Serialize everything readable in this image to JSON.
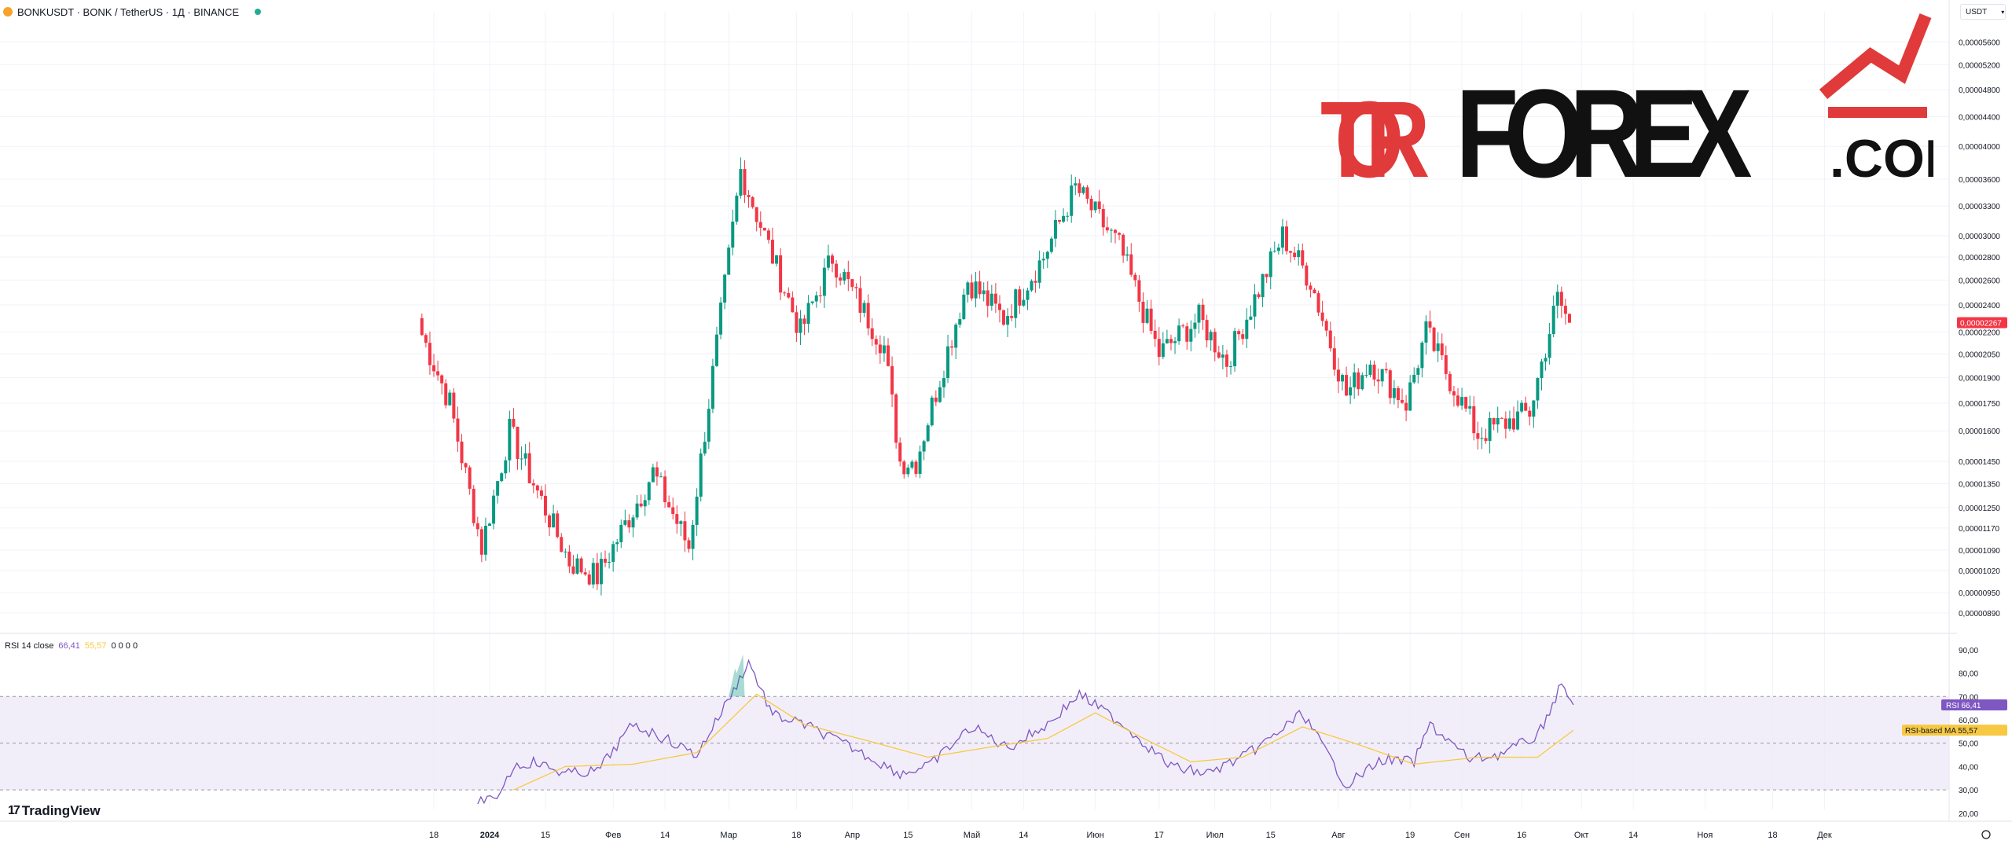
{
  "header": {
    "symbol_line": "BONKUSDT · BONK / TetherUS · 1Д · BINANCE"
  },
  "currency_button": {
    "label": "USDT",
    "chevron_icon": "chevron-down-icon"
  },
  "watermark": {
    "part1": "TOR",
    "part2": "FOREX",
    "part3": ".COM",
    "accent": "#e03a3a"
  },
  "rsi_header": {
    "label": "RSI 14 close",
    "rsi_value": "66,41",
    "ma_value": "55,57",
    "zeros": "0 0 0 0"
  },
  "branding": {
    "logo_text": "TradingView",
    "logo_mark": "17"
  },
  "colors": {
    "up": "#089981",
    "down": "#f23645",
    "rsi": "#7e57c2",
    "rsi_ma": "#f7c942",
    "band": "#ede7f6"
  },
  "chart_data": [
    {
      "type": "candlestick",
      "title": "BONKUSDT · BONK / TetherUS · 1Д · BINANCE",
      "y_scale": "log",
      "ylim": [
        8.5e-06,
        5.8e-06
      ],
      "y_ticks": [
        "0,00005600",
        "0,00005200",
        "0,00004800",
        "0,00004400",
        "0,00004000",
        "0,00003600",
        "0,00003300",
        "0,00003000",
        "0,00002800",
        "0,00002600",
        "0,00002400",
        "0,00002200",
        "0,00002050",
        "0,00001900",
        "0,00001750",
        "0,00001600",
        "0,00001450",
        "0,00001350",
        "0,00001250",
        "0,00001170",
        "0,00001090",
        "0,00001020",
        "0,00000950",
        "0,00000890"
      ],
      "x_ticks": [
        "18",
        "2024",
        "15",
        "Фев",
        "14",
        "Мар",
        "18",
        "Апр",
        "15",
        "Май",
        "14",
        "Июн",
        "17",
        "Июл",
        "15",
        "Авг",
        "19",
        "Сен",
        "16",
        "Окт",
        "14",
        "Ноя",
        "18",
        "Дек"
      ],
      "last_price": "0,00002267",
      "segments": [
        {
          "from": "Dec 14",
          "to": "Dec 22",
          "start": 2.25e-05,
          "end": 1.75e-05
        },
        {
          "from": "Dec 22",
          "to": "Dec 30",
          "start": 1.75e-05,
          "end": 1.1e-05
        },
        {
          "from": "Dec 30",
          "to": "Jan 7",
          "start": 1.1e-05,
          "end": 1.6e-05
        },
        {
          "from": "Jan 7",
          "to": "Jan 22",
          "start": 1.6e-05,
          "end": 1.05e-05
        },
        {
          "from": "Jan 22",
          "to": "Jan 29",
          "start": 1.05e-05,
          "end": 1e-05
        },
        {
          "from": "Jan 29",
          "to": "Feb 12",
          "start": 1e-05,
          "end": 1.4e-05
        },
        {
          "from": "Feb 12",
          "to": "Feb 21",
          "start": 1.4e-05,
          "end": 1.1e-05
        },
        {
          "from": "Feb 21",
          "to": "Mar 5",
          "start": 1.1e-05,
          "end": 3.7e-05
        },
        {
          "from": "Mar 5",
          "to": "Mar 11",
          "start": 3.7e-05,
          "end": 3e-05
        },
        {
          "from": "Mar 11",
          "to": "Mar 20",
          "start": 3e-05,
          "end": 2.2e-05
        },
        {
          "from": "Mar 20",
          "to": "Mar 28",
          "start": 2.2e-05,
          "end": 2.8e-05
        },
        {
          "from": "Mar 28",
          "to": "Apr 10",
          "start": 2.8e-05,
          "end": 2.1e-05
        },
        {
          "from": "Apr 10",
          "to": "Apr 14",
          "start": 2.1e-05,
          "end": 1.45e-05
        },
        {
          "from": "Apr 14",
          "to": "Apr 18",
          "start": 1.45e-05,
          "end": 1.45e-05
        },
        {
          "from": "Apr 18",
          "to": "May 1",
          "start": 1.45e-05,
          "end": 2.6e-05
        },
        {
          "from": "May 1",
          "to": "May 10",
          "start": 2.6e-05,
          "end": 2.3e-05
        },
        {
          "from": "May 10",
          "to": "May 20",
          "start": 2.3e-05,
          "end": 2.8e-05
        },
        {
          "from": "May 20",
          "to": "May 28",
          "start": 2.8e-05,
          "end": 3.5e-05
        },
        {
          "from": "May 28",
          "to": "Jun 8",
          "start": 3.5e-05,
          "end": 2.9e-05
        },
        {
          "from": "Jun 8",
          "to": "Jun 18",
          "start": 2.9e-05,
          "end": 2.05e-05
        },
        {
          "from": "Jun 18",
          "to": "Jun 28",
          "start": 2.05e-05,
          "end": 2.3e-05
        },
        {
          "from": "Jun 28",
          "to": "Jul 5",
          "start": 2.3e-05,
          "end": 2e-05
        },
        {
          "from": "Jul 5",
          "to": "Jul 19",
          "start": 2e-05,
          "end": 3e-05
        },
        {
          "from": "Jul 19",
          "to": "Jul 26",
          "start": 3e-05,
          "end": 2.6e-05
        },
        {
          "from": "Jul 26",
          "to": "Aug 4",
          "start": 2.6e-05,
          "end": 1.8e-05
        },
        {
          "from": "Aug 4",
          "to": "Aug 10",
          "start": 1.8e-05,
          "end": 2e-05
        },
        {
          "from": "Aug 10",
          "to": "Aug 19",
          "start": 2e-05,
          "end": 1.75e-05
        },
        {
          "from": "Aug 19",
          "to": "Aug 24",
          "start": 1.75e-05,
          "end": 2.2e-05
        },
        {
          "from": "Aug 24",
          "to": "Sep 6",
          "start": 2.2e-05,
          "end": 1.58e-05
        },
        {
          "from": "Sep 6",
          "to": "Sep 19",
          "start": 1.58e-05,
          "end": 1.7e-05
        },
        {
          "from": "Sep 19",
          "to": "Sep 26",
          "start": 1.7e-05,
          "end": 2.45e-05
        },
        {
          "from": "Sep 26",
          "to": "Sep 29",
          "start": 2.45e-05,
          "end": 2.267e-05
        }
      ]
    },
    {
      "type": "line",
      "title": "RSI 14 close",
      "ylim": [
        25,
        95
      ],
      "y_ticks": [
        "90,00",
        "80,00",
        "70,00",
        "60,00",
        "50,00",
        "40,00",
        "30,00",
        "20,00"
      ],
      "bands": [
        70,
        50,
        30
      ],
      "series": [
        {
          "name": "RSI",
          "labels": [
            "Dec 28",
            "Jan 2",
            "Jan 7",
            "Jan 12",
            "Jan 20",
            "Jan 28",
            "Feb 6",
            "Feb 14",
            "Feb 22",
            "Mar 3",
            "Mar 6",
            "Mar 12",
            "Mar 20",
            "Apr 1",
            "Apr 13",
            "Apr 20",
            "May 1",
            "May 10",
            "May 20",
            "May 28",
            "Jun 8",
            "Jun 20",
            "Jun 29",
            "Jul 8",
            "Jul 15",
            "Jul 23",
            "Aug 3",
            "Aug 12",
            "Aug 20",
            "Aug 24",
            "Sep 3",
            "Sep 10",
            "Sep 20",
            "Sep 26",
            "Sep 29"
          ],
          "values": [
            26,
            25,
            40,
            42,
            37,
            38,
            58,
            52,
            45,
            75,
            85,
            62,
            58,
            48,
            37,
            40,
            57,
            48,
            58,
            71,
            58,
            40,
            37,
            44,
            52,
            63,
            32,
            43,
            42,
            58,
            43,
            45,
            53,
            75,
            66.41
          ]
        },
        {
          "name": "RSI-based MA",
          "labels": [
            "Jan 7",
            "Jan 20",
            "Feb 6",
            "Feb 22",
            "Mar 8",
            "Mar 20",
            "Apr 5",
            "Apr 20",
            "May 8",
            "May 20",
            "Jun 1",
            "Jun 12",
            "Jun 25",
            "Jul 8",
            "Jul 23",
            "Aug 5",
            "Aug 20",
            "Sep 5",
            "Sep 20",
            "Sep 29"
          ],
          "values": [
            30,
            40,
            41,
            46,
            71,
            58,
            51,
            44,
            49,
            52,
            63,
            53,
            42,
            44,
            57,
            50,
            41,
            44,
            44,
            55.57
          ]
        }
      ]
    }
  ]
}
